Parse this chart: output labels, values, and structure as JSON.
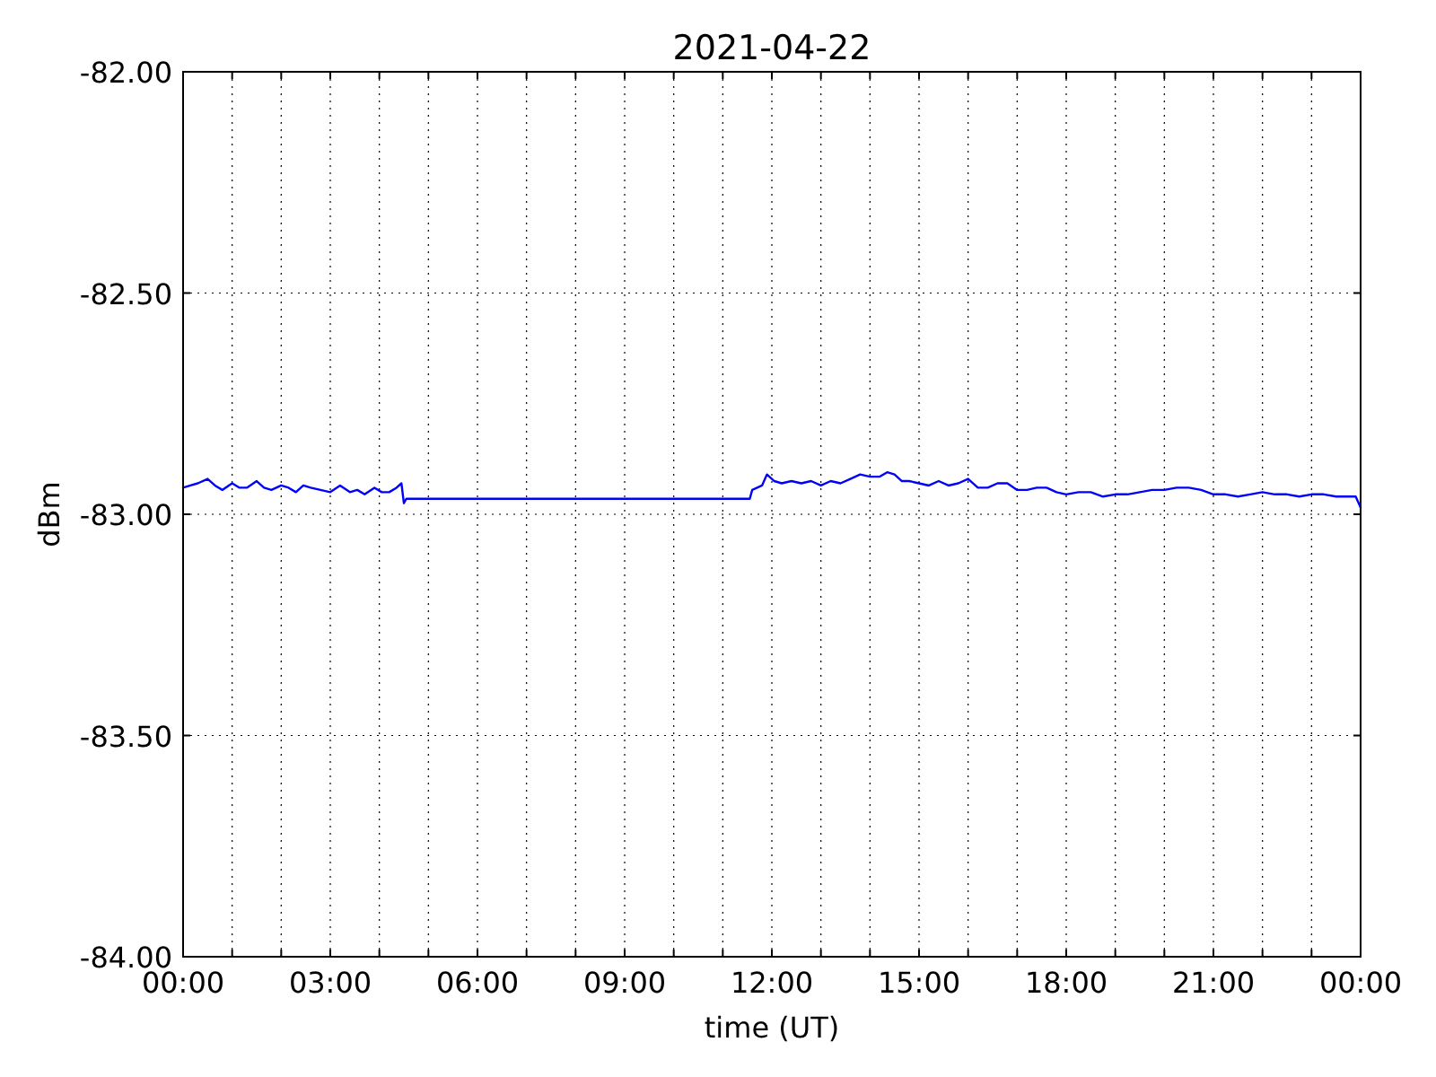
{
  "chart_data": {
    "type": "line",
    "title": "2021-04-22",
    "xlabel": "time (UT)",
    "ylabel": "dBm",
    "series": [
      {
        "color": "#0000ff",
        "x": [
          0,
          0.15,
          0.3,
          0.5,
          0.65,
          0.8,
          1.0,
          1.15,
          1.3,
          1.5,
          1.65,
          1.8,
          2.0,
          2.15,
          2.3,
          2.45,
          2.6,
          2.8,
          3.0,
          3.2,
          3.4,
          3.55,
          3.7,
          3.9,
          4.05,
          4.2,
          4.35,
          4.45,
          4.5,
          4.55,
          11.55,
          11.6,
          11.8,
          11.9,
          12.05,
          12.2,
          12.4,
          12.6,
          12.8,
          13.0,
          13.2,
          13.4,
          13.6,
          13.8,
          14.0,
          14.2,
          14.35,
          14.5,
          14.65,
          14.8,
          15.0,
          15.2,
          15.4,
          15.6,
          15.8,
          16.0,
          16.2,
          16.4,
          16.6,
          16.8,
          17.0,
          17.2,
          17.4,
          17.6,
          17.8,
          18.0,
          18.25,
          18.5,
          18.75,
          19.0,
          19.25,
          19.5,
          19.75,
          20.0,
          20.25,
          20.5,
          20.75,
          21.0,
          21.25,
          21.5,
          21.75,
          22.0,
          22.25,
          22.5,
          22.75,
          23.0,
          23.25,
          23.5,
          23.7,
          23.9,
          24.0
        ],
        "values": [
          -82.94,
          -82.935,
          -82.93,
          -82.92,
          -82.935,
          -82.945,
          -82.93,
          -82.94,
          -82.94,
          -82.925,
          -82.94,
          -82.945,
          -82.935,
          -82.94,
          -82.95,
          -82.935,
          -82.94,
          -82.945,
          -82.95,
          -82.935,
          -82.95,
          -82.945,
          -82.955,
          -82.94,
          -82.95,
          -82.95,
          -82.94,
          -82.93,
          -82.975,
          -82.965,
          -82.965,
          -82.945,
          -82.935,
          -82.91,
          -82.925,
          -82.93,
          -82.925,
          -82.93,
          -82.925,
          -82.935,
          -82.925,
          -82.93,
          -82.92,
          -82.91,
          -82.915,
          -82.915,
          -82.905,
          -82.91,
          -82.925,
          -82.925,
          -82.93,
          -82.935,
          -82.925,
          -82.935,
          -82.93,
          -82.92,
          -82.94,
          -82.94,
          -82.93,
          -82.93,
          -82.945,
          -82.945,
          -82.94,
          -82.94,
          -82.95,
          -82.955,
          -82.95,
          -82.95,
          -82.96,
          -82.955,
          -82.955,
          -82.95,
          -82.945,
          -82.945,
          -82.94,
          -82.94,
          -82.945,
          -82.955,
          -82.955,
          -82.96,
          -82.955,
          -82.95,
          -82.955,
          -82.955,
          -82.96,
          -82.955,
          -82.955,
          -82.96,
          -82.96,
          -82.96,
          -82.985
        ]
      }
    ],
    "xlim": [
      0,
      24
    ],
    "xticks": [
      {
        "value": 0,
        "label": "00:00"
      },
      {
        "value": 1,
        "label": null
      },
      {
        "value": 2,
        "label": null
      },
      {
        "value": 3,
        "label": "03:00"
      },
      {
        "value": 4,
        "label": null
      },
      {
        "value": 5,
        "label": null
      },
      {
        "value": 6,
        "label": "06:00"
      },
      {
        "value": 7,
        "label": null
      },
      {
        "value": 8,
        "label": null
      },
      {
        "value": 9,
        "label": "09:00"
      },
      {
        "value": 10,
        "label": null
      },
      {
        "value": 11,
        "label": null
      },
      {
        "value": 12,
        "label": "12:00"
      },
      {
        "value": 13,
        "label": null
      },
      {
        "value": 14,
        "label": null
      },
      {
        "value": 15,
        "label": "15:00"
      },
      {
        "value": 16,
        "label": null
      },
      {
        "value": 17,
        "label": null
      },
      {
        "value": 18,
        "label": "18:00"
      },
      {
        "value": 19,
        "label": null
      },
      {
        "value": 20,
        "label": null
      },
      {
        "value": 21,
        "label": "21:00"
      },
      {
        "value": 22,
        "label": null
      },
      {
        "value": 23,
        "label": null
      },
      {
        "value": 24,
        "label": "00:00"
      }
    ],
    "ylim": [
      -84,
      -82
    ],
    "yticks": [
      {
        "value": -84,
        "label": "-84.00"
      },
      {
        "value": -83.5,
        "label": "-83.50"
      },
      {
        "value": -83,
        "label": "-83.00"
      },
      {
        "value": -82.5,
        "label": "-82.50"
      },
      {
        "value": -82,
        "label": "-82.00"
      }
    ],
    "grid": true,
    "marker": "none",
    "line_style": "solid"
  }
}
